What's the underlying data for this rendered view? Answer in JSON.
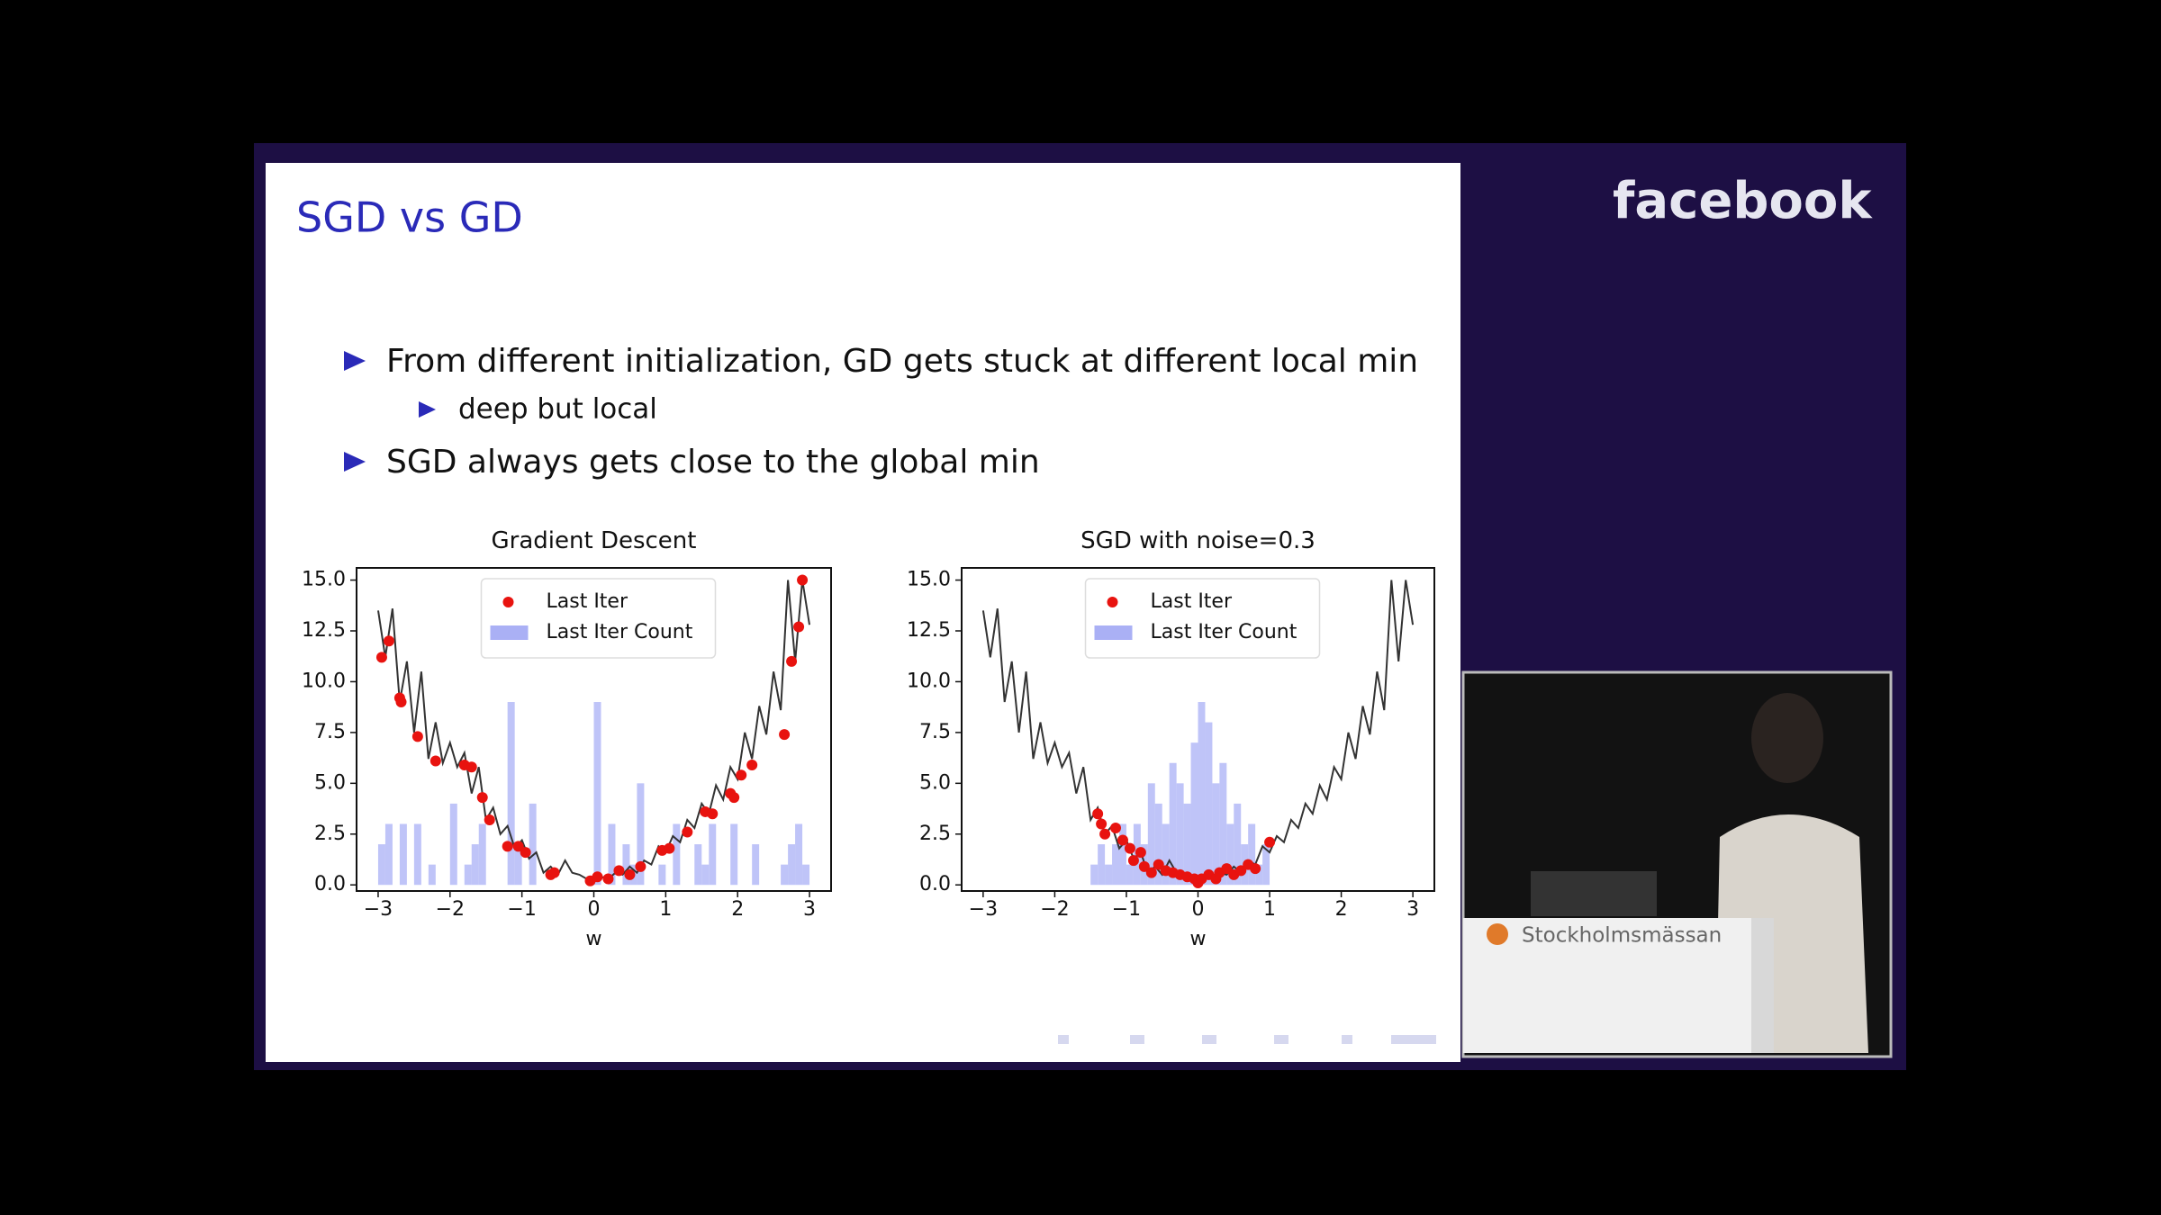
{
  "slide": {
    "title": "SGD vs GD",
    "bullets": [
      {
        "text": "From different initialization, GD gets stuck at different local min",
        "sub": [
          "deep but local"
        ]
      },
      {
        "text": "SGD always gets close to the global min"
      }
    ]
  },
  "logo": "facebook",
  "venue_sign": "Stockholmsmässan",
  "chart_data": [
    {
      "type": "combo",
      "title": "Gradient Descent",
      "xlabel": "w",
      "legend": "upper center",
      "xlim": [
        -3.3,
        3.3
      ],
      "ylim": [
        -0.3,
        15.6
      ],
      "xticks": [
        {
          "value": -3,
          "label": "−3"
        },
        {
          "value": -2,
          "label": "−2"
        },
        {
          "value": -1,
          "label": "−1"
        },
        0,
        1,
        2,
        3
      ],
      "yticks": [
        {
          "value": 0,
          "label": "0.0"
        },
        2.5,
        {
          "value": 5,
          "label": "5.0"
        },
        7.5,
        {
          "value": 10,
          "label": "10.0"
        },
        12.5,
        {
          "value": 15,
          "label": "15.0"
        }
      ],
      "series": [
        {
          "type": "histogram",
          "name": "Last Iter Count",
          "color": "#aab0f5",
          "bins": [
            -3.0,
            -2.9,
            -2.8,
            -2.7,
            -2.6,
            -2.5,
            -2.4,
            -2.3,
            -2.2,
            -2.1,
            -2.0,
            -1.9,
            -1.8,
            -1.7,
            -1.6,
            -1.5,
            -1.4,
            -1.3,
            -1.2,
            -1.1,
            -1.0,
            -0.9,
            -0.8,
            -0.7,
            -0.6,
            -0.5,
            -0.4,
            -0.3,
            -0.2,
            -0.1,
            0.0,
            0.1,
            0.2,
            0.3,
            0.4,
            0.5,
            0.6,
            0.7,
            0.8,
            0.9,
            1.0,
            1.1,
            1.2,
            1.3,
            1.4,
            1.5,
            1.6,
            1.7,
            1.8,
            1.9,
            2.0,
            2.1,
            2.2,
            2.3,
            2.4,
            2.5,
            2.6,
            2.7,
            2.8,
            2.9,
            3.0
          ],
          "values": [
            2,
            3,
            0,
            3,
            0,
            3,
            0,
            1,
            0,
            0,
            4,
            0,
            1,
            2,
            3,
            0,
            0,
            0,
            9,
            2,
            0,
            4,
            0,
            0,
            0,
            0,
            0,
            0,
            0,
            0,
            9,
            0,
            3,
            0,
            2,
            1,
            5,
            0,
            0,
            1,
            0,
            3,
            0,
            0,
            2,
            1,
            3,
            0,
            0,
            3,
            0,
            0,
            2,
            0,
            0,
            0,
            1,
            2,
            3,
            1
          ]
        },
        {
          "type": "line",
          "color": "#333333",
          "x": [
            -3.0,
            -2.9,
            -2.8,
            -2.7,
            -2.6,
            -2.5,
            -2.4,
            -2.3,
            -2.2,
            -2.1,
            -2.0,
            -1.9,
            -1.8,
            -1.7,
            -1.6,
            -1.5,
            -1.4,
            -1.3,
            -1.2,
            -1.1,
            -1.0,
            -0.9,
            -0.8,
            -0.7,
            -0.6,
            -0.5,
            -0.4,
            -0.3,
            -0.2,
            -0.1,
            0.0,
            0.1,
            0.2,
            0.3,
            0.4,
            0.5,
            0.6,
            0.7,
            0.8,
            0.9,
            1.0,
            1.1,
            1.2,
            1.3,
            1.4,
            1.5,
            1.6,
            1.7,
            1.8,
            1.9,
            2.0,
            2.1,
            2.2,
            2.3,
            2.4,
            2.5,
            2.6,
            2.7,
            2.8,
            2.9,
            3.0
          ],
          "values": [
            13.5,
            11.2,
            13.6,
            9.0,
            11.0,
            7.5,
            10.5,
            6.2,
            8.0,
            6.0,
            7.0,
            5.8,
            6.5,
            4.5,
            5.8,
            3.2,
            3.8,
            2.5,
            2.9,
            1.8,
            2.2,
            1.3,
            1.6,
            0.6,
            0.9,
            0.5,
            1.2,
            0.6,
            0.5,
            0.3,
            0.2,
            0.4,
            0.3,
            0.6,
            0.5,
            0.9,
            0.6,
            1.2,
            1.0,
            1.9,
            1.6,
            2.4,
            2.1,
            3.2,
            2.8,
            4.0,
            3.5,
            4.9,
            4.2,
            5.8,
            5.2,
            7.5,
            6.2,
            8.8,
            7.4,
            10.5,
            8.6,
            15.0,
            11.0,
            15.0,
            12.8
          ]
        },
        {
          "type": "scatter",
          "name": "Last Iter",
          "color": "#e8130f",
          "x": [
            -2.95,
            -2.85,
            -2.7,
            -2.68,
            -2.45,
            -2.2,
            -1.8,
            -1.7,
            -1.55,
            -1.45,
            -1.2,
            -1.05,
            -0.95,
            -0.6,
            -0.55,
            -0.05,
            0.05,
            0.2,
            0.35,
            0.5,
            0.65,
            0.95,
            1.05,
            1.3,
            1.55,
            1.65,
            1.9,
            1.95,
            2.05,
            2.2,
            2.65,
            2.75,
            2.85,
            2.9
          ],
          "values": [
            11.2,
            12.0,
            9.2,
            9.0,
            7.3,
            6.1,
            5.9,
            5.8,
            4.3,
            3.2,
            1.9,
            1.9,
            1.6,
            0.5,
            0.6,
            0.2,
            0.4,
            0.3,
            0.7,
            0.5,
            0.9,
            1.7,
            1.8,
            2.6,
            3.6,
            3.5,
            4.5,
            4.3,
            5.4,
            5.9,
            7.4,
            11.0,
            12.7,
            15.0
          ]
        }
      ]
    },
    {
      "type": "combo",
      "title": "SGD with noise=0.3",
      "xlabel": "w",
      "legend": "upper center",
      "xlim": [
        -3.3,
        3.3
      ],
      "ylim": [
        -0.3,
        15.6
      ],
      "xticks": [
        {
          "value": -3,
          "label": "−3"
        },
        {
          "value": -2,
          "label": "−2"
        },
        {
          "value": -1,
          "label": "−1"
        },
        0,
        1,
        2,
        3
      ],
      "yticks": [
        {
          "value": 0,
          "label": "0.0"
        },
        2.5,
        {
          "value": 5,
          "label": "5.0"
        },
        7.5,
        {
          "value": 10,
          "label": "10.0"
        },
        12.5,
        {
          "value": 15,
          "label": "15.0"
        }
      ],
      "series": [
        {
          "type": "histogram",
          "name": "Last Iter Count",
          "color": "#aab0f5",
          "bins": [
            -3.0,
            -2.9,
            -2.8,
            -2.7,
            -2.6,
            -2.5,
            -2.4,
            -2.3,
            -2.2,
            -2.1,
            -2.0,
            -1.9,
            -1.8,
            -1.7,
            -1.6,
            -1.5,
            -1.4,
            -1.3,
            -1.2,
            -1.1,
            -1.0,
            -0.9,
            -0.8,
            -0.7,
            -0.6,
            -0.5,
            -0.4,
            -0.3,
            -0.2,
            -0.1,
            0.0,
            0.1,
            0.2,
            0.3,
            0.4,
            0.5,
            0.6,
            0.7,
            0.8,
            0.9,
            1.0,
            1.1,
            1.2,
            1.3,
            1.4,
            1.5,
            1.6,
            1.7,
            1.8,
            1.9,
            2.0,
            2.1,
            2.2,
            2.3,
            2.4,
            2.5,
            2.6,
            2.7,
            2.8,
            2.9,
            3.0
          ],
          "values": [
            0,
            0,
            0,
            0,
            0,
            0,
            0,
            0,
            0,
            0,
            0,
            0,
            0,
            0,
            0,
            1,
            2,
            1,
            2,
            3,
            1,
            3,
            2,
            5,
            4,
            3,
            6,
            5,
            4,
            7,
            9,
            8,
            5,
            6,
            3,
            4,
            2,
            3,
            1,
            2,
            0,
            0,
            0,
            0,
            0,
            0,
            0,
            0,
            0,
            0,
            0,
            0,
            0,
            0,
            0,
            0,
            0,
            0,
            0,
            0
          ]
        },
        {
          "type": "line",
          "color": "#333333",
          "x": [
            -3.0,
            -2.9,
            -2.8,
            -2.7,
            -2.6,
            -2.5,
            -2.4,
            -2.3,
            -2.2,
            -2.1,
            -2.0,
            -1.9,
            -1.8,
            -1.7,
            -1.6,
            -1.5,
            -1.4,
            -1.3,
            -1.2,
            -1.1,
            -1.0,
            -0.9,
            -0.8,
            -0.7,
            -0.6,
            -0.5,
            -0.4,
            -0.3,
            -0.2,
            -0.1,
            0.0,
            0.1,
            0.2,
            0.3,
            0.4,
            0.5,
            0.6,
            0.7,
            0.8,
            0.9,
            1.0,
            1.1,
            1.2,
            1.3,
            1.4,
            1.5,
            1.6,
            1.7,
            1.8,
            1.9,
            2.0,
            2.1,
            2.2,
            2.3,
            2.4,
            2.5,
            2.6,
            2.7,
            2.8,
            2.9,
            3.0
          ],
          "values": [
            13.5,
            11.2,
            13.6,
            9.0,
            11.0,
            7.5,
            10.5,
            6.2,
            8.0,
            6.0,
            7.0,
            5.8,
            6.5,
            4.5,
            5.8,
            3.2,
            3.8,
            2.5,
            2.9,
            1.8,
            2.2,
            1.3,
            1.6,
            0.6,
            0.9,
            0.5,
            1.2,
            0.6,
            0.5,
            0.3,
            0.2,
            0.4,
            0.3,
            0.6,
            0.5,
            0.9,
            0.6,
            1.2,
            1.0,
            1.9,
            1.6,
            2.4,
            2.1,
            3.2,
            2.8,
            4.0,
            3.5,
            4.9,
            4.2,
            5.8,
            5.2,
            7.5,
            6.2,
            8.8,
            7.4,
            10.5,
            8.6,
            15.0,
            11.0,
            15.0,
            12.8
          ]
        },
        {
          "type": "scatter",
          "name": "Last Iter",
          "color": "#e8130f",
          "x": [
            -1.4,
            -1.35,
            -1.3,
            -1.15,
            -1.05,
            -0.95,
            -0.9,
            -0.8,
            -0.75,
            -0.65,
            -0.55,
            -0.45,
            -0.35,
            -0.25,
            -0.15,
            -0.05,
            0.0,
            0.05,
            0.15,
            0.25,
            0.3,
            0.4,
            0.5,
            0.6,
            0.7,
            0.8,
            1.0
          ],
          "values": [
            3.5,
            3.0,
            2.5,
            2.8,
            2.2,
            1.8,
            1.2,
            1.6,
            0.9,
            0.6,
            1.0,
            0.7,
            0.6,
            0.5,
            0.4,
            0.3,
            0.1,
            0.3,
            0.5,
            0.3,
            0.6,
            0.8,
            0.5,
            0.7,
            1.0,
            0.8,
            2.1
          ]
        }
      ]
    }
  ]
}
